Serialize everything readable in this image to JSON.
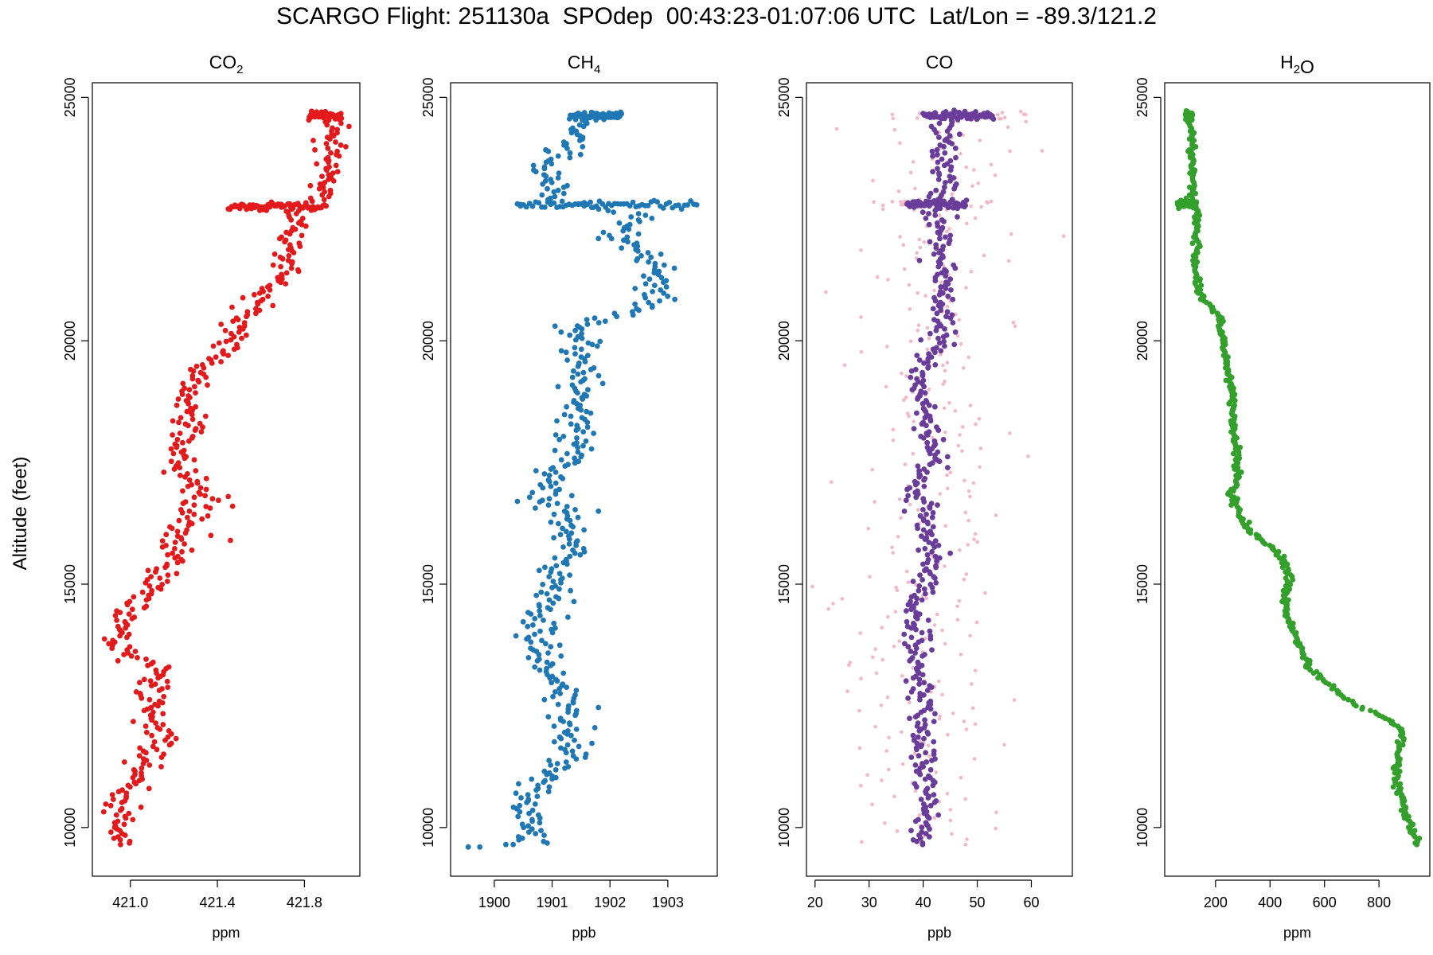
{
  "figure": {
    "title": "SCARGO Flight: 251130a  SPOdep  00:43:23-01:07:06 UTC  Lat/Lon = -89.3/121.2",
    "ylabel": "Altitude (feet)"
  },
  "chart_data": [
    {
      "type": "scatter",
      "panel": "co2",
      "title": "CO2",
      "xlabel": "ppm",
      "ylabel": "Altitude (feet)",
      "color": "#e31a1c",
      "xlim": [
        420.84,
        422.04
      ],
      "ylim": [
        9000,
        25300
      ],
      "xticks": [
        421.0,
        421.4,
        421.8
      ],
      "xtick_labels": [
        "421.0",
        "421.4",
        "421.8"
      ],
      "yticks": [
        10000,
        15000,
        20000,
        25000
      ],
      "ytick_labels": [
        "10000",
        "15000",
        "20000",
        "25000"
      ],
      "profile": [
        [
          9650,
          420.99
        ],
        [
          9800,
          420.92
        ],
        [
          10100,
          420.96
        ],
        [
          10600,
          420.95
        ],
        [
          10900,
          421.0
        ],
        [
          11300,
          421.07
        ],
        [
          11700,
          421.13
        ],
        [
          12200,
          421.1
        ],
        [
          12700,
          421.09
        ],
        [
          13200,
          421.14
        ],
        [
          13500,
          421.0
        ],
        [
          13900,
          420.94
        ],
        [
          14300,
          420.96
        ],
        [
          14600,
          421.03
        ],
        [
          15000,
          421.12
        ],
        [
          15400,
          421.17
        ],
        [
          15800,
          421.22
        ],
        [
          16200,
          421.25
        ],
        [
          16500,
          421.3
        ],
        [
          16800,
          421.33
        ],
        [
          17100,
          421.3
        ],
        [
          17400,
          421.21
        ],
        [
          17800,
          421.23
        ],
        [
          18300,
          421.27
        ],
        [
          18800,
          421.26
        ],
        [
          19300,
          421.29
        ],
        [
          19600,
          421.37
        ],
        [
          20000,
          421.48
        ],
        [
          20400,
          421.5
        ],
        [
          20800,
          421.57
        ],
        [
          21200,
          421.7
        ],
        [
          21600,
          421.73
        ],
        [
          22000,
          421.72
        ],
        [
          22400,
          421.76
        ],
        [
          22750,
          421.72
        ],
        [
          23000,
          421.88
        ],
        [
          23500,
          421.9
        ],
        [
          24000,
          421.93
        ],
        [
          24600,
          421.92
        ]
      ],
      "spread": 0.035,
      "excursions": [
        [
          22750,
          421.45,
          421.9
        ],
        [
          24620,
          421.82,
          421.97
        ]
      ],
      "outliers": [
        [
          16600,
          421.47
        ],
        [
          16800,
          421.45
        ],
        [
          15900,
          421.46
        ],
        [
          16000,
          421.37
        ],
        [
          18300,
          421.32
        ],
        [
          13000,
          421.17
        ]
      ]
    },
    {
      "type": "scatter",
      "panel": "ch4",
      "title": "CH4",
      "xlabel": "ppb",
      "color": "#1f78b4",
      "xlim": [
        1899.3,
        1903.8
      ],
      "ylim": [
        9000,
        25300
      ],
      "xticks": [
        1900,
        1901,
        1902,
        1903
      ],
      "xtick_labels": [
        "1900",
        "1901",
        "1902",
        "1903"
      ],
      "yticks": [
        10000,
        15000,
        20000,
        25000
      ],
      "ytick_labels": [
        "10000",
        "15000",
        "20000",
        "25000"
      ],
      "profile": [
        [
          9600,
          1900.1
        ],
        [
          9700,
          1900.6
        ],
        [
          10000,
          1900.5
        ],
        [
          10400,
          1900.6
        ],
        [
          10800,
          1900.7
        ],
        [
          11100,
          1901.1
        ],
        [
          11500,
          1901.35
        ],
        [
          11900,
          1901.2
        ],
        [
          12200,
          1901.25
        ],
        [
          12500,
          1901.35
        ],
        [
          12800,
          1901.2
        ],
        [
          13200,
          1900.95
        ],
        [
          13600,
          1900.85
        ],
        [
          14000,
          1900.7
        ],
        [
          14400,
          1900.9
        ],
        [
          14800,
          1901.0
        ],
        [
          15100,
          1901.05
        ],
        [
          15500,
          1901.3
        ],
        [
          15900,
          1901.35
        ],
        [
          16300,
          1901.25
        ],
        [
          16600,
          1901.2
        ],
        [
          16900,
          1900.85
        ],
        [
          17200,
          1900.9
        ],
        [
          17500,
          1901.3
        ],
        [
          17900,
          1901.4
        ],
        [
          18300,
          1901.35
        ],
        [
          18700,
          1901.4
        ],
        [
          19100,
          1901.55
        ],
        [
          19500,
          1901.5
        ],
        [
          19900,
          1901.45
        ],
        [
          20300,
          1901.5
        ],
        [
          20700,
          1902.65
        ],
        [
          21000,
          1902.85
        ],
        [
          21400,
          1902.75
        ],
        [
          21800,
          1902.8
        ],
        [
          22000,
          1902.2
        ],
        [
          22300,
          1902.15
        ],
        [
          22600,
          1902.4
        ],
        [
          22850,
          1901.1
        ],
        [
          23200,
          1901.05
        ],
        [
          23600,
          1901.0
        ],
        [
          24000,
          1901.3
        ],
        [
          24400,
          1901.35
        ],
        [
          24620,
          1901.6
        ]
      ],
      "spread": 0.18,
      "excursions": [
        [
          22800,
          1900.4,
          1903.5
        ],
        [
          24620,
          1901.3,
          1902.2
        ]
      ],
      "outliers": [
        [
          9600,
          1899.55
        ],
        [
          9600,
          1899.75
        ],
        [
          9650,
          1900.2
        ],
        [
          16700,
          1900.4
        ],
        [
          11000,
          1901.0
        ],
        [
          16500,
          1901.8
        ],
        [
          20300,
          1901.05
        ],
        [
          22100,
          1901.8
        ],
        [
          22800,
          1900.45
        ]
      ]
    },
    {
      "type": "scatter",
      "panel": "co",
      "title": "CO",
      "xlabel": "ppb",
      "color": "#6a3d9a",
      "raw_color": "#f4b8c8",
      "xlim": [
        19,
        67
      ],
      "ylim": [
        9000,
        25300
      ],
      "xticks": [
        20,
        30,
        40,
        50,
        60
      ],
      "xtick_labels": [
        "20",
        "30",
        "40",
        "50",
        "60"
      ],
      "yticks": [
        10000,
        15000,
        20000,
        25000
      ],
      "ytick_labels": [
        "10000",
        "15000",
        "20000",
        "25000"
      ],
      "profile": [
        [
          9600,
          39.5
        ],
        [
          10200,
          40.5
        ],
        [
          10900,
          41.0
        ],
        [
          11400,
          40.0
        ],
        [
          12000,
          40.5
        ],
        [
          12500,
          40.0
        ],
        [
          13000,
          39.0
        ],
        [
          13500,
          38.5
        ],
        [
          14000,
          39.0
        ],
        [
          14600,
          38.5
        ],
        [
          15000,
          41.0
        ],
        [
          15600,
          42.0
        ],
        [
          16100,
          41.0
        ],
        [
          16500,
          40.0
        ],
        [
          17000,
          38.5
        ],
        [
          17600,
          42.5
        ],
        [
          18200,
          41.0
        ],
        [
          18800,
          40.0
        ],
        [
          19300,
          38.5
        ],
        [
          19800,
          42.5
        ],
        [
          20300,
          44.0
        ],
        [
          20800,
          43.0
        ],
        [
          21400,
          43.0
        ],
        [
          21900,
          43.0
        ],
        [
          22300,
          43.0
        ],
        [
          22800,
          42.0
        ],
        [
          23200,
          45.0
        ],
        [
          23800,
          43.0
        ],
        [
          24300,
          44.5
        ],
        [
          24620,
          45.0
        ]
      ],
      "spread": 1.3,
      "excursions": [
        [
          22800,
          37.0,
          48.0
        ],
        [
          24620,
          40.0,
          53.0
        ]
      ],
      "raw_spread": 6.5,
      "outliers": [
        [
          14950,
          19.5
        ],
        [
          22150,
          66.0
        ],
        [
          24350,
          24.0
        ],
        [
          21000,
          22.0
        ],
        [
          19500,
          25.5
        ],
        [
          17100,
          23.0
        ],
        [
          14700,
          25.0
        ],
        [
          18100,
          56.0
        ],
        [
          20300,
          57.0
        ],
        [
          23900,
          62.0
        ],
        [
          24500,
          59.0
        ],
        [
          12800,
          26.0
        ],
        [
          11700,
          55.0
        ]
      ]
    },
    {
      "type": "scatter",
      "panel": "h2o",
      "title": "H2O",
      "xlabel": "ppm",
      "color": "#33a02c",
      "xlim": [
        25,
        975
      ],
      "ylim": [
        9000,
        25300
      ],
      "xticks": [
        200,
        400,
        600,
        800
      ],
      "xtick_labels": [
        "200",
        "400",
        "600",
        "800"
      ],
      "yticks": [
        10000,
        15000,
        20000,
        25000
      ],
      "ytick_labels": [
        "10000",
        "15000",
        "20000",
        "25000"
      ],
      "profile": [
        [
          9650,
          940
        ],
        [
          9900,
          925
        ],
        [
          10200,
          905
        ],
        [
          10600,
          880
        ],
        [
          11000,
          865
        ],
        [
          11500,
          870
        ],
        [
          12000,
          885
        ],
        [
          12200,
          840
        ],
        [
          12500,
          720
        ],
        [
          12900,
          620
        ],
        [
          13300,
          540
        ],
        [
          13800,
          505
        ],
        [
          14200,
          475
        ],
        [
          14700,
          450
        ],
        [
          15100,
          470
        ],
        [
          15400,
          460
        ],
        [
          15700,
          420
        ],
        [
          15900,
          370
        ],
        [
          16100,
          320
        ],
        [
          16500,
          285
        ],
        [
          16900,
          255
        ],
        [
          17200,
          285
        ],
        [
          17600,
          280
        ],
        [
          18000,
          270
        ],
        [
          18500,
          260
        ],
        [
          18900,
          265
        ],
        [
          19300,
          245
        ],
        [
          19700,
          235
        ],
        [
          20100,
          225
        ],
        [
          20500,
          210
        ],
        [
          20800,
          160
        ],
        [
          21100,
          135
        ],
        [
          21500,
          125
        ],
        [
          21900,
          130
        ],
        [
          22300,
          130
        ],
        [
          22600,
          135
        ],
        [
          22900,
          110
        ],
        [
          23200,
          120
        ],
        [
          23700,
          115
        ],
        [
          24200,
          110
        ],
        [
          24620,
          100
        ]
      ],
      "spread": 7,
      "excursions": [
        [
          22800,
          60,
          130
        ],
        [
          24620,
          90,
          115
        ]
      ],
      "outliers": []
    }
  ]
}
